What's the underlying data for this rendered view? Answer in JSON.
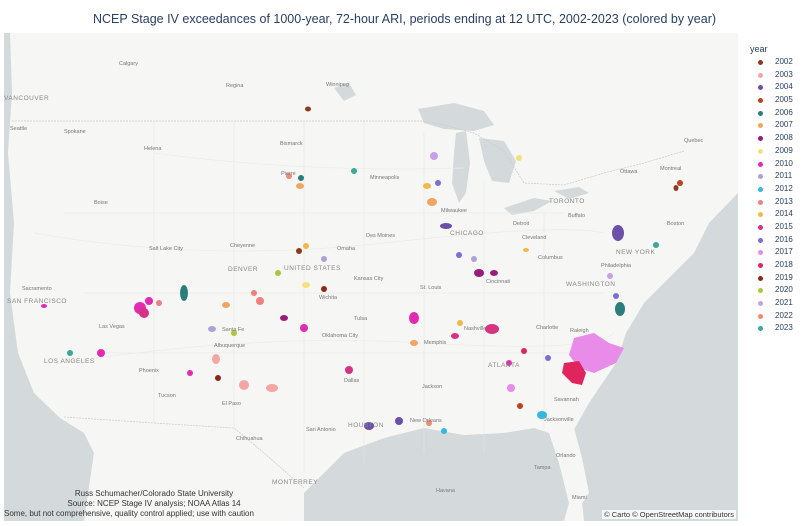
{
  "title": "NCEP Stage IV exceedances of 1000-year, 72-hour ARI, periods ending at 12 UTC, 2002-2023 (colored by year)",
  "credit": {
    "line1": "Russ Schumacher/Colorado State University",
    "line2": "Source: NCEP Stage IV analysis; NOAA Atlas 14",
    "line3": "Some, but not comprehensive, quality control applied; use with caution"
  },
  "attribution": "© Carto © OpenStreetMap contributors",
  "legend": {
    "title": "year",
    "items": [
      {
        "label": "2002",
        "color": "#8c3a1e"
      },
      {
        "label": "2003",
        "color": "#f4a6a6"
      },
      {
        "label": "2004",
        "color": "#6b4fa8"
      },
      {
        "label": "2005",
        "color": "#c0401a"
      },
      {
        "label": "2006",
        "color": "#2a7f7b"
      },
      {
        "label": "2007",
        "color": "#f4a460"
      },
      {
        "label": "2008",
        "color": "#9b1b7a"
      },
      {
        "label": "2009",
        "color": "#f5e07a"
      },
      {
        "label": "2010",
        "color": "#e22bb0"
      },
      {
        "label": "2011",
        "color": "#b0a0d8"
      },
      {
        "label": "2012",
        "color": "#33b8e0"
      },
      {
        "label": "2013",
        "color": "#f08080"
      },
      {
        "label": "2014",
        "color": "#f2b84b"
      },
      {
        "label": "2015",
        "color": "#d63384"
      },
      {
        "label": "2016",
        "color": "#7a6fd6"
      },
      {
        "label": "2017",
        "color": "#e98be8"
      },
      {
        "label": "2018",
        "color": "#e0245e"
      },
      {
        "label": "2019",
        "color": "#8b2a1a"
      },
      {
        "label": "2020",
        "color": "#a8c83a"
      },
      {
        "label": "2021",
        "color": "#c8a0e8"
      },
      {
        "label": "2022",
        "color": "#f08a70"
      },
      {
        "label": "2023",
        "color": "#3aa89a"
      }
    ]
  },
  "map_labels": {
    "usa": "UNITED STATES",
    "denver": "DENVER",
    "chicago": "CHICAGO",
    "toronto": "TORONTO",
    "newyork": "NEW YORK",
    "washington": "WASHINGTON",
    "philadelphia": "Philadelphia",
    "boston": "Boston",
    "montreal": "Montreal",
    "ottawa": "Ottawa",
    "quebec": "Quebec",
    "detroit": "Detroit",
    "cleveland": "Cleveland",
    "milwaukee": "Milwaukee",
    "minneapolis": "Minneapolis",
    "desmoines": "Des Moines",
    "stlouis": "St. Louis",
    "cincinnati": "Cincinnati",
    "columbus": "Columbus",
    "buffalo": "Buffalo",
    "nashville": "Nashville",
    "atlanta": "ATLANTA",
    "memphis": "Memphis",
    "jackson": "Jackson",
    "neworleans": "New Orleans",
    "houston": "HOUSTON",
    "sanantonio": "San Antonio",
    "dallas": "Dallas",
    "oklahomacity": "Oklahoma City",
    "tulsa": "Tulsa",
    "kansascity": "Kansas City",
    "wichita": "Wichita",
    "omaha": "Omaha",
    "cheyenne": "Cheyenne",
    "saltlake": "Salt Lake City",
    "lasvegas": "Las Vegas",
    "losangeles": "LOS ANGELES",
    "sanfrancisco": "SAN FRANCISCO",
    "sacramento": "Sacramento",
    "phoenix": "Phoenix",
    "tucson": "Tucson",
    "albuquerque": "Albuquerque",
    "santafe": "Santa Fe",
    "elpaso": "El Paso",
    "chihuahua": "Chihuahua",
    "monterrey": "MONTERREY",
    "boise": "Boise",
    "helena": "Helena",
    "bismarck": "Bismarck",
    "pierre": "Pierre",
    "winnipeg": "Winnipeg",
    "regina": "Regina",
    "calgary": "Calgary",
    "seattle": "Seattle",
    "spokane": "Spokane",
    "vancouver": "VANCOUVER",
    "charlotte": "Charlotte",
    "raleigh": "Raleigh",
    "savannah": "Savannah",
    "jacksonville": "Jacksonville",
    "orlando": "Orlando",
    "miami": "Miami",
    "tampa": "Tampa",
    "havana": "Havana"
  }
}
